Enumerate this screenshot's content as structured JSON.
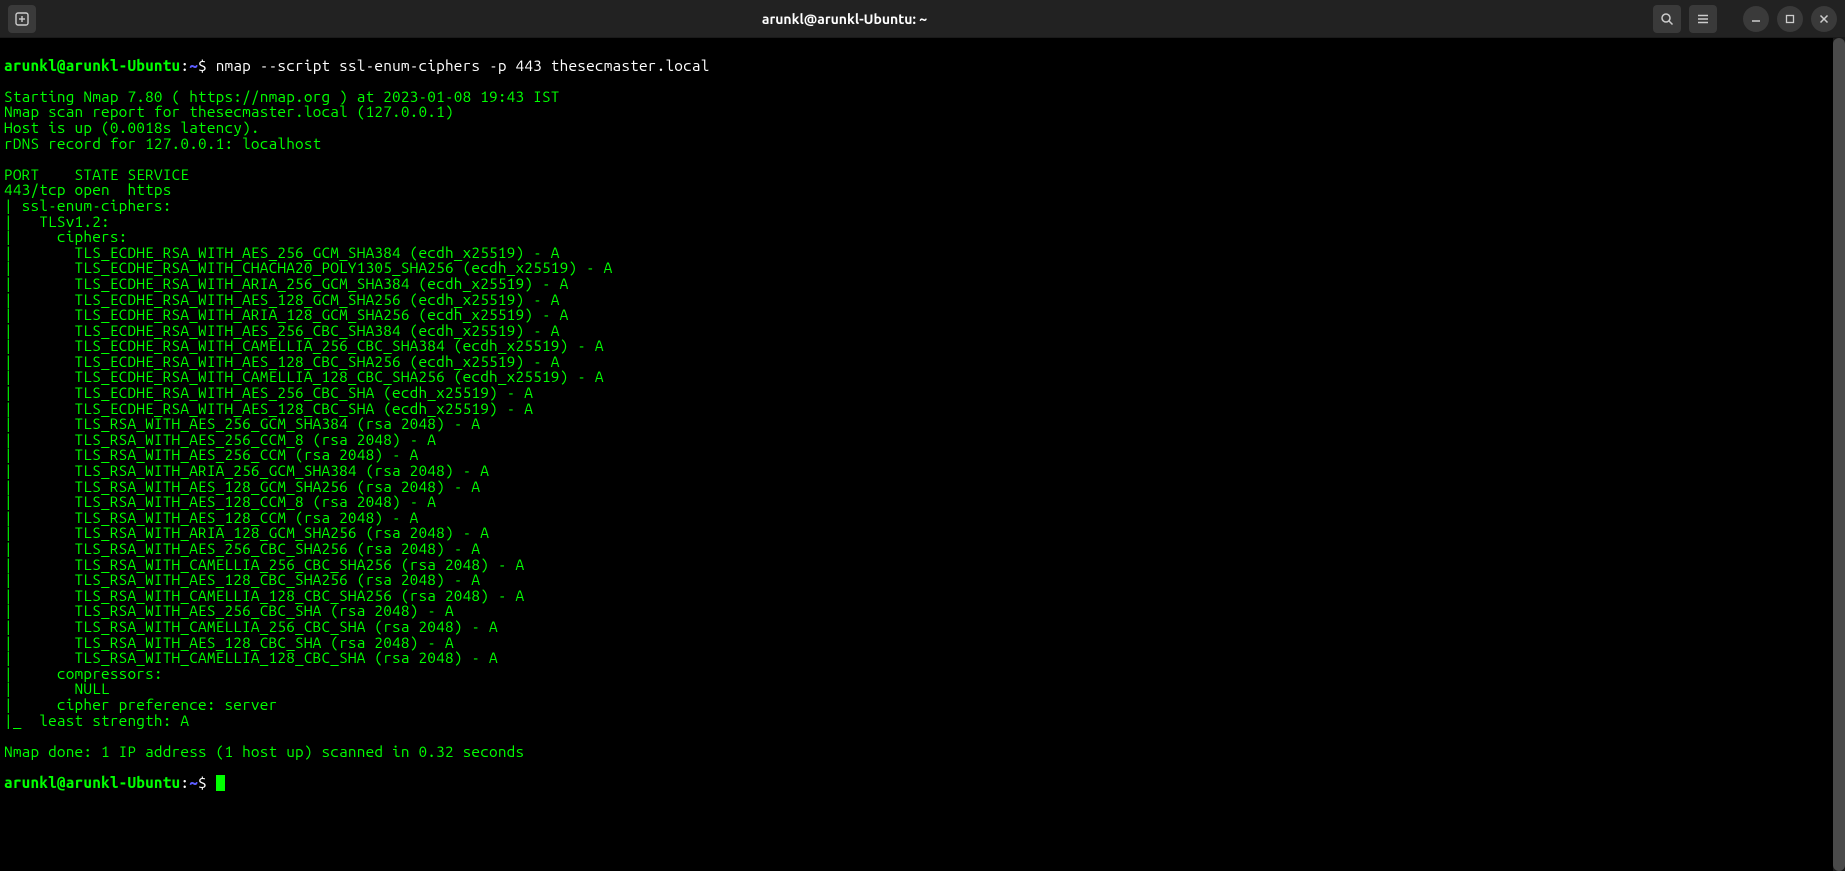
{
  "window": {
    "title": "arunkl@arunkl-Ubuntu: ~"
  },
  "colors": {
    "titlebar_bg": "#222222",
    "terminal_bg": "#000000",
    "terminal_fg": "#00ff00",
    "prompt_user": "#00ff00",
    "prompt_path": "#5c5cff",
    "cmd_text": "#ffffff",
    "button_bg": "#3a3a3a"
  },
  "prompt1": {
    "userhost": "arunkl@arunkl-Ubuntu",
    "colon": ":",
    "path": "~",
    "dollar": "$ ",
    "command": "nmap --script ssl-enum-ciphers -p 443 thesecmaster.local"
  },
  "output_lines": [
    "Starting Nmap 7.80 ( https://nmap.org ) at 2023-01-08 19:43 IST",
    "Nmap scan report for thesecmaster.local (127.0.0.1)",
    "Host is up (0.0018s latency).",
    "rDNS record for 127.0.0.1: localhost",
    "",
    "PORT    STATE SERVICE",
    "443/tcp open  https",
    "| ssl-enum-ciphers: ",
    "|   TLSv1.2: ",
    "|     ciphers: ",
    "|       TLS_ECDHE_RSA_WITH_AES_256_GCM_SHA384 (ecdh_x25519) - A",
    "|       TLS_ECDHE_RSA_WITH_CHACHA20_POLY1305_SHA256 (ecdh_x25519) - A",
    "|       TLS_ECDHE_RSA_WITH_ARIA_256_GCM_SHA384 (ecdh_x25519) - A",
    "|       TLS_ECDHE_RSA_WITH_AES_128_GCM_SHA256 (ecdh_x25519) - A",
    "|       TLS_ECDHE_RSA_WITH_ARIA_128_GCM_SHA256 (ecdh_x25519) - A",
    "|       TLS_ECDHE_RSA_WITH_AES_256_CBC_SHA384 (ecdh_x25519) - A",
    "|       TLS_ECDHE_RSA_WITH_CAMELLIA_256_CBC_SHA384 (ecdh_x25519) - A",
    "|       TLS_ECDHE_RSA_WITH_AES_128_CBC_SHA256 (ecdh_x25519) - A",
    "|       TLS_ECDHE_RSA_WITH_CAMELLIA_128_CBC_SHA256 (ecdh_x25519) - A",
    "|       TLS_ECDHE_RSA_WITH_AES_256_CBC_SHA (ecdh_x25519) - A",
    "|       TLS_ECDHE_RSA_WITH_AES_128_CBC_SHA (ecdh_x25519) - A",
    "|       TLS_RSA_WITH_AES_256_GCM_SHA384 (rsa 2048) - A",
    "|       TLS_RSA_WITH_AES_256_CCM_8 (rsa 2048) - A",
    "|       TLS_RSA_WITH_AES_256_CCM (rsa 2048) - A",
    "|       TLS_RSA_WITH_ARIA_256_GCM_SHA384 (rsa 2048) - A",
    "|       TLS_RSA_WITH_AES_128_GCM_SHA256 (rsa 2048) - A",
    "|       TLS_RSA_WITH_AES_128_CCM_8 (rsa 2048) - A",
    "|       TLS_RSA_WITH_AES_128_CCM (rsa 2048) - A",
    "|       TLS_RSA_WITH_ARIA_128_GCM_SHA256 (rsa 2048) - A",
    "|       TLS_RSA_WITH_AES_256_CBC_SHA256 (rsa 2048) - A",
    "|       TLS_RSA_WITH_CAMELLIA_256_CBC_SHA256 (rsa 2048) - A",
    "|       TLS_RSA_WITH_AES_128_CBC_SHA256 (rsa 2048) - A",
    "|       TLS_RSA_WITH_CAMELLIA_128_CBC_SHA256 (rsa 2048) - A",
    "|       TLS_RSA_WITH_AES_256_CBC_SHA (rsa 2048) - A",
    "|       TLS_RSA_WITH_CAMELLIA_256_CBC_SHA (rsa 2048) - A",
    "|       TLS_RSA_WITH_AES_128_CBC_SHA (rsa 2048) - A",
    "|       TLS_RSA_WITH_CAMELLIA_128_CBC_SHA (rsa 2048) - A",
    "|     compressors: ",
    "|       NULL",
    "|     cipher preference: server",
    "|_  least strength: A",
    "",
    "Nmap done: 1 IP address (1 host up) scanned in 0.32 seconds"
  ],
  "prompt2": {
    "userhost": "arunkl@arunkl-Ubuntu",
    "colon": ":",
    "path": "~",
    "dollar": "$ "
  }
}
